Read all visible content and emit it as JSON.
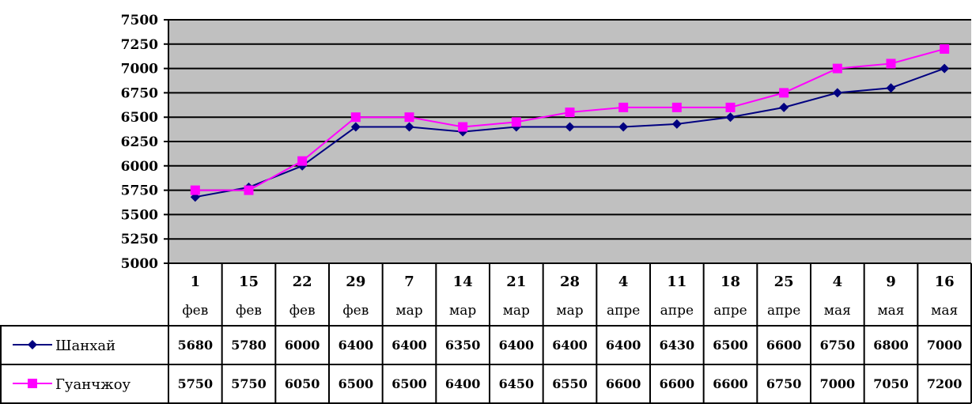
{
  "chart_data": {
    "type": "line",
    "title": "",
    "xlabel": "",
    "ylabel": "",
    "ylim": [
      5000,
      7500
    ],
    "yticks": [
      5000,
      5250,
      5500,
      5750,
      6000,
      6250,
      6500,
      6750,
      7000,
      7250,
      7500
    ],
    "grid": true,
    "legend": "data table below plot",
    "plot_background": "#c0c0c0",
    "categories": [
      {
        "day": "1",
        "month": "фев"
      },
      {
        "day": "15",
        "month": "фев"
      },
      {
        "day": "22",
        "month": "фев"
      },
      {
        "day": "29",
        "month": "фев"
      },
      {
        "day": "7",
        "month": "мар"
      },
      {
        "day": "14",
        "month": "мар"
      },
      {
        "day": "21",
        "month": "мар"
      },
      {
        "day": "28",
        "month": "мар"
      },
      {
        "day": "4",
        "month": "апре"
      },
      {
        "day": "11",
        "month": "апре"
      },
      {
        "day": "18",
        "month": "апре"
      },
      {
        "day": "25",
        "month": "апре"
      },
      {
        "day": "4",
        "month": "мая"
      },
      {
        "day": "9",
        "month": "мая"
      },
      {
        "day": "16",
        "month": "мая"
      }
    ],
    "series": [
      {
        "name": "Шанхай",
        "color": "#000080",
        "marker": "diamond",
        "values": [
          5680,
          5780,
          6000,
          6400,
          6400,
          6350,
          6400,
          6400,
          6400,
          6430,
          6500,
          6600,
          6750,
          6800,
          7000
        ]
      },
      {
        "name": "Гуанчжоу",
        "color": "#ff00ff",
        "marker": "square",
        "values": [
          5750,
          5750,
          6050,
          6500,
          6500,
          6400,
          6450,
          6550,
          6600,
          6600,
          6600,
          6750,
          7000,
          7050,
          7200
        ]
      }
    ]
  }
}
